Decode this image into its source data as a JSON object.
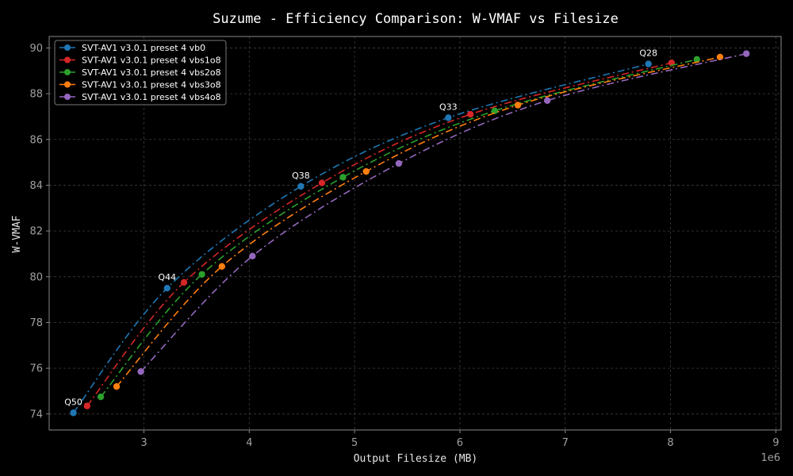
{
  "chart_data": {
    "type": "line",
    "title": "Suzume - Efficiency Comparison: W-VMAF vs Filesize",
    "xlabel": "Output Filesize (MB)",
    "ylabel": "W-VMAF",
    "x_offset_label": "1e6",
    "xlim": [
      2.1,
      9.05
    ],
    "ylim": [
      73.3,
      90.5
    ],
    "xticks": [
      3,
      4,
      5,
      6,
      7,
      8,
      9
    ],
    "yticks": [
      74,
      76,
      78,
      80,
      82,
      84,
      86,
      88,
      90
    ],
    "grid": true,
    "legend_position": "top-left",
    "style": "dash-dot lines with circle markers",
    "series": [
      {
        "name": "SVT-AV1 v3.0.1 preset 4 vb0",
        "color": "#1f77b4",
        "x": [
          2.33,
          3.22,
          4.49,
          5.89,
          7.79
        ],
        "y": [
          74.05,
          79.5,
          83.95,
          86.95,
          89.3
        ]
      },
      {
        "name": "SVT-AV1 v3.0.1 preset 4 vbs1o8",
        "color": "#d62728",
        "x": [
          2.46,
          3.38,
          4.69,
          6.1,
          8.01
        ],
        "y": [
          74.35,
          79.75,
          84.1,
          87.1,
          89.35
        ]
      },
      {
        "name": "SVT-AV1 v3.0.1 preset 4 vbs2o8",
        "color": "#2ca02c",
        "x": [
          2.59,
          3.55,
          4.89,
          6.33,
          8.25
        ],
        "y": [
          74.75,
          80.1,
          84.35,
          87.25,
          89.5
        ]
      },
      {
        "name": "SVT-AV1 v3.0.1 preset 4 vbs3o8",
        "color": "#ff7f0e",
        "x": [
          2.74,
          3.74,
          5.11,
          6.55,
          8.47
        ],
        "y": [
          75.2,
          80.45,
          84.6,
          87.5,
          89.6
        ]
      },
      {
        "name": "SVT-AV1 v3.0.1 preset 4 vbs4o8",
        "color": "#9467bd",
        "x": [
          2.97,
          4.03,
          5.42,
          6.83,
          8.72
        ],
        "y": [
          75.85,
          80.9,
          84.95,
          87.7,
          89.75
        ]
      }
    ],
    "annotations": [
      {
        "text": "Q50",
        "x": 2.33,
        "y": 74.05
      },
      {
        "text": "Q44",
        "x": 3.22,
        "y": 79.5
      },
      {
        "text": "Q38",
        "x": 4.49,
        "y": 83.95
      },
      {
        "text": "Q33",
        "x": 5.89,
        "y": 86.95
      },
      {
        "text": "Q28",
        "x": 7.79,
        "y": 89.3
      }
    ]
  }
}
